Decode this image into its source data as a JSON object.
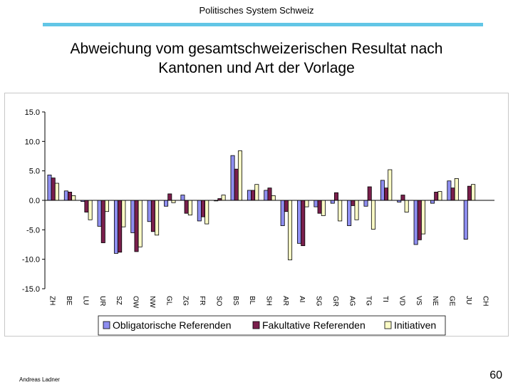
{
  "header": {
    "text": "Politisches System Schweiz"
  },
  "title": {
    "line1": "Abweichung vom gesamtschweizerischen Resultat nach",
    "line2": "Kantonen und Art der Vorlage"
  },
  "footer": {
    "author": "Andreas Ladner",
    "page": "60"
  },
  "colors": {
    "rule": "#62c6e6",
    "series": [
      "#8e8ef0",
      "#7a1f4c",
      "#fcfcc6"
    ]
  },
  "chart_data": {
    "type": "bar",
    "title": "",
    "xlabel": "",
    "ylabel": "",
    "ylim": [
      -15,
      15
    ],
    "yticks": [
      "15.0",
      "10.0",
      "5.0",
      "0.0",
      "-5.0",
      "-10.0",
      "-15.0"
    ],
    "grid": false,
    "legend_position": "bottom",
    "categories": [
      "ZH",
      "BE",
      "LU",
      "UR",
      "SZ",
      "OW",
      "NW",
      "GL",
      "ZG",
      "FR",
      "SO",
      "BS",
      "BL",
      "SH",
      "AR",
      "AI",
      "SG",
      "GR",
      "AG",
      "TG",
      "TI",
      "VD",
      "VS",
      "NE",
      "GE",
      "JU",
      "CH"
    ],
    "series": [
      {
        "name": "Obligatorische Referenden",
        "values": [
          4.3,
          1.6,
          -0.2,
          -4.4,
          -9.0,
          -5.5,
          -3.6,
          -1.0,
          0.9,
          -3.5,
          -0.1,
          7.6,
          1.7,
          1.7,
          -4.3,
          -7.3,
          -1.1,
          -0.5,
          -4.3,
          -1.0,
          3.4,
          -0.3,
          -7.5,
          -0.5,
          3.3,
          -6.6,
          0
        ]
      },
      {
        "name": "Fakultative Referenden",
        "values": [
          3.8,
          1.4,
          -2.0,
          -7.2,
          -8.8,
          -8.7,
          -5.3,
          1.1,
          -2.2,
          -2.8,
          0.3,
          5.3,
          1.7,
          2.1,
          -1.9,
          -7.7,
          -2.2,
          1.3,
          -0.9,
          2.3,
          2.1,
          0.9,
          -6.7,
          1.4,
          2.1,
          2.4,
          0
        ]
      },
      {
        "name": "Initiativen",
        "values": [
          2.9,
          0.8,
          -3.3,
          -1.9,
          -4.5,
          -7.9,
          -5.9,
          -0.4,
          -2.5,
          -4.0,
          0.9,
          8.4,
          2.7,
          0.8,
          -10.1,
          -1.1,
          -2.6,
          -3.5,
          -3.3,
          -4.9,
          5.2,
          -2.0,
          -5.7,
          1.5,
          3.7,
          2.7,
          0
        ]
      }
    ]
  }
}
